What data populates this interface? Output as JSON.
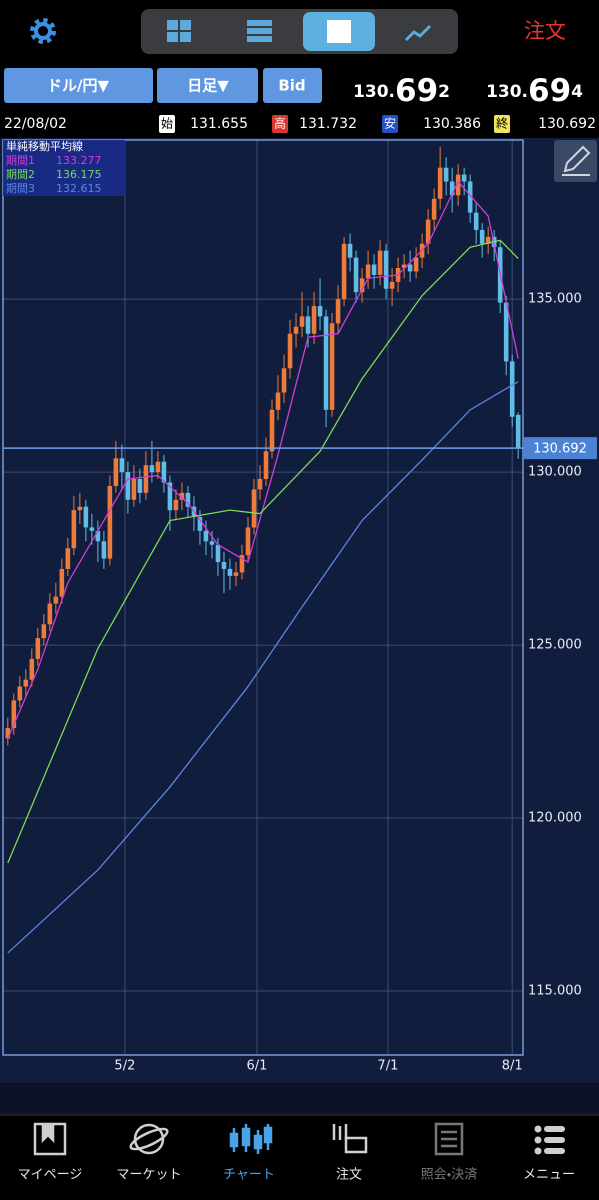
{
  "header": {
    "order": "注文"
  },
  "toolbar": {
    "pair": "ドル/円▼",
    "period": "日足▼",
    "side": "Bid",
    "bid": {
      "head": "130.",
      "big": "69",
      "tail": "2"
    },
    "ask": {
      "head": "130.",
      "big": "69",
      "tail": "4"
    }
  },
  "ohlc_bar": {
    "date": "22/08/02",
    "open_label": "始",
    "high_label": "高",
    "low_label": "安",
    "close_label": "終"
  },
  "chart_data": {
    "type": "candlestick",
    "legend_title": "単純移動平均線",
    "xlim": [
      -0.8,
      85.8
    ],
    "ylim": [
      113.15,
      139.6
    ],
    "xticks": [
      {
        "value": 19.5,
        "label": "5/2"
      },
      {
        "value": 41.5,
        "label": "6/1"
      },
      {
        "value": 63.3,
        "label": "7/1"
      },
      {
        "value": 84,
        "label": "8/1"
      }
    ],
    "yticks": [
      {
        "value": 115,
        "label": "115.000"
      },
      {
        "value": 120,
        "label": "120.000"
      },
      {
        "value": 125,
        "label": "125.000"
      },
      {
        "value": 130,
        "label": "130.000"
      },
      {
        "value": 135,
        "label": "135.000"
      }
    ],
    "grid": true,
    "candles": {
      "up_color": "#ee7a3c",
      "down_color": "#62bde6",
      "x": [
        0,
        1,
        2,
        3,
        4,
        5,
        6,
        7,
        8,
        9,
        10,
        11,
        12,
        13,
        14,
        15,
        16,
        17,
        18,
        19,
        20,
        21,
        22,
        23,
        24,
        25,
        26,
        27,
        28,
        29,
        30,
        31,
        32,
        33,
        34,
        35,
        36,
        37,
        38,
        39,
        40,
        41,
        42,
        43,
        44,
        45,
        46,
        47,
        48,
        49,
        50,
        51,
        52,
        53,
        54,
        55,
        56,
        57,
        58,
        59,
        60,
        61,
        62,
        63,
        64,
        65,
        66,
        67,
        68,
        69,
        70,
        71,
        72,
        73,
        74,
        75,
        76,
        77,
        78,
        79,
        80,
        81,
        82,
        83,
        84,
        85
      ],
      "open": [
        122.3,
        122.6,
        123.4,
        123.8,
        124.0,
        124.6,
        125.2,
        125.6,
        126.2,
        126.4,
        127.2,
        127.8,
        128.9,
        129.0,
        128.4,
        128.3,
        128.0,
        127.5,
        129.6,
        130.4,
        130.0,
        129.2,
        129.8,
        129.4,
        130.2,
        130.0,
        130.3,
        129.7,
        128.9,
        129.2,
        129.4,
        129.0,
        128.7,
        128.3,
        128.0,
        127.9,
        127.4,
        127.2,
        127.0,
        127.1,
        127.6,
        128.4,
        129.5,
        129.8,
        130.6,
        131.8,
        132.3,
        133.0,
        134.0,
        134.2,
        134.5,
        134.0,
        134.8,
        134.5,
        131.8,
        134.3,
        135.0,
        136.6,
        136.2,
        135.2,
        135.6,
        136.0,
        135.7,
        136.4,
        135.3,
        135.5,
        135.9,
        136.0,
        135.8,
        136.2,
        136.6,
        137.3,
        137.9,
        138.8,
        138.4,
        138.0,
        138.6,
        138.4,
        137.5,
        137.0,
        136.6,
        136.8,
        136.5,
        134.9,
        133.2,
        131.655
      ],
      "high": [
        122.9,
        123.6,
        124.1,
        124.3,
        124.9,
        125.5,
        125.9,
        126.5,
        126.8,
        127.5,
        128.1,
        129.3,
        129.4,
        129.2,
        128.8,
        128.6,
        128.3,
        129.9,
        130.9,
        130.8,
        130.3,
        130.2,
        130.1,
        130.6,
        130.9,
        130.6,
        130.5,
        129.9,
        129.5,
        129.7,
        129.6,
        129.3,
        128.9,
        128.6,
        128.3,
        128.1,
        127.7,
        127.5,
        127.4,
        127.9,
        128.7,
        129.8,
        130.2,
        131.0,
        132.1,
        132.8,
        133.4,
        134.4,
        134.6,
        135.2,
        134.8,
        135.2,
        135.6,
        134.7,
        134.6,
        135.4,
        136.8,
        136.9,
        136.4,
        135.9,
        136.4,
        136.3,
        136.7,
        136.6,
        135.9,
        136.2,
        136.3,
        136.4,
        136.5,
        136.9,
        137.6,
        138.2,
        139.4,
        139.1,
        138.8,
        138.9,
        138.8,
        138.6,
        137.8,
        137.2,
        137.1,
        137.0,
        136.7,
        135.1,
        133.4,
        131.732
      ],
      "low": [
        122.1,
        122.4,
        123.2,
        123.5,
        123.8,
        124.4,
        125.0,
        125.4,
        125.9,
        126.2,
        127.0,
        127.6,
        128.5,
        128.0,
        127.9,
        127.4,
        127.2,
        127.3,
        129.4,
        129.5,
        128.8,
        129.0,
        129.1,
        129.2,
        129.7,
        129.8,
        129.4,
        128.3,
        128.6,
        128.9,
        128.7,
        128.3,
        127.9,
        127.6,
        127.5,
        127.0,
        126.5,
        126.6,
        126.7,
        126.9,
        127.4,
        128.2,
        129.2,
        129.6,
        130.4,
        131.5,
        132.0,
        132.7,
        133.6,
        133.9,
        133.6,
        133.7,
        134.1,
        131.3,
        131.6,
        134.0,
        134.8,
        135.8,
        134.9,
        134.9,
        135.3,
        135.3,
        135.4,
        135.0,
        134.8,
        135.2,
        135.6,
        135.5,
        135.6,
        135.9,
        136.3,
        137.0,
        137.6,
        138.0,
        137.5,
        137.7,
        138.0,
        137.2,
        136.6,
        136.2,
        136.3,
        136.1,
        134.6,
        132.8,
        131.3,
        130.386
      ],
      "close": [
        122.6,
        123.4,
        123.8,
        124.0,
        124.6,
        125.2,
        125.6,
        126.2,
        126.4,
        127.2,
        127.8,
        128.9,
        129.0,
        128.4,
        128.3,
        128.0,
        127.5,
        129.6,
        130.4,
        130.0,
        129.2,
        129.8,
        129.4,
        130.2,
        130.0,
        130.3,
        129.7,
        128.9,
        129.2,
        129.4,
        129.0,
        128.7,
        128.3,
        128.0,
        127.9,
        127.4,
        127.2,
        127.0,
        127.1,
        127.6,
        128.4,
        129.5,
        129.8,
        130.6,
        131.8,
        132.3,
        133.0,
        134.0,
        134.2,
        134.5,
        134.0,
        134.8,
        134.5,
        131.8,
        134.3,
        135.0,
        136.6,
        136.2,
        135.2,
        135.6,
        136.0,
        135.7,
        136.4,
        135.3,
        135.5,
        135.9,
        136.0,
        135.8,
        136.2,
        136.6,
        137.3,
        137.9,
        138.8,
        138.4,
        138.0,
        138.6,
        138.4,
        137.5,
        137.0,
        136.6,
        136.8,
        136.5,
        134.9,
        133.2,
        131.6,
        130.692
      ]
    },
    "series": [
      {
        "name": "期間1",
        "color": "#d23cd8",
        "x": [
          0,
          5,
          10,
          15,
          20,
          25,
          30,
          35,
          40,
          45,
          50,
          55,
          60,
          65,
          70,
          75,
          80,
          85
        ],
        "values": [
          122.3,
          124.3,
          126.8,
          128.3,
          129.8,
          129.9,
          129.1,
          127.9,
          127.4,
          130.5,
          133.9,
          134.0,
          135.6,
          135.7,
          136.6,
          138.4,
          137.4,
          133.277
        ]
      },
      {
        "name": "期間2",
        "color": "#7ed957",
        "x": [
          0,
          15,
          27,
          37,
          42,
          52,
          59,
          69,
          77,
          82,
          85
        ],
        "values": [
          118.7,
          124.9,
          128.6,
          128.9,
          128.8,
          130.6,
          132.7,
          135.1,
          136.5,
          136.7,
          136.175
        ]
      },
      {
        "name": "期間3",
        "color": "#5b86e0",
        "x": [
          0,
          15,
          27,
          40,
          49,
          59,
          69,
          77,
          85
        ],
        "values": [
          116.1,
          118.5,
          120.9,
          123.8,
          126.1,
          128.6,
          130.35,
          131.8,
          132.615
        ]
      }
    ]
  },
  "nav": [
    "マイページ",
    "マーケット",
    "チャート",
    "注文",
    "照会・決済",
    "メニュー"
  ]
}
